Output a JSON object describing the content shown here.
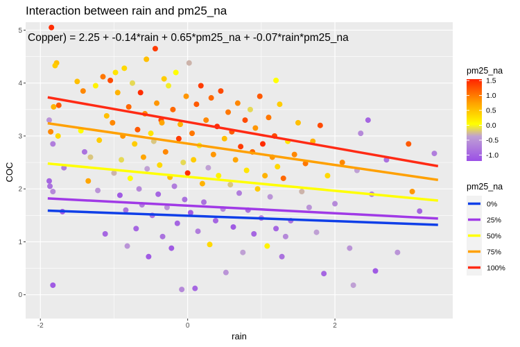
{
  "chart_data": {
    "type": "scatter",
    "title": "Interaction between rain and pm25_na",
    "annotation": "Copper) = 2.25 + -0.14*rain + 0.65*pm25_na + -0.07*rain*pm25_na",
    "xlabel": "rain",
    "ylabel": "COC",
    "xlim": [
      -2.2,
      3.6
    ],
    "ylim": [
      -0.45,
      5.15
    ],
    "x_ticks": [
      -2,
      0,
      2
    ],
    "x_tick_labels": [
      "-2",
      "0",
      "2"
    ],
    "y_ticks": [
      0,
      1,
      2,
      3,
      4,
      5
    ],
    "y_tick_labels": [
      "0",
      "1",
      "2",
      "3",
      "4",
      "5"
    ],
    "grid": true,
    "model": {
      "intercept": 2.25,
      "rain": -0.14,
      "pm25_na": 0.65,
      "interaction": -0.07
    },
    "color_legend": {
      "title": "pm25_na",
      "breaks": [
        1.5,
        1.0,
        0.5,
        0.0,
        -0.5,
        -1.0
      ],
      "labels": [
        "1.5",
        "1.0",
        "0.5",
        "0.0",
        "-0.5",
        "-1.0"
      ],
      "range": [
        -1.2,
        1.55
      ],
      "colors": [
        "#9B4FE6",
        "#BFA0D4",
        "#FFFF00",
        "#FFA500",
        "#FF2400"
      ]
    },
    "line_legend": {
      "title": "pm25_na",
      "labels": [
        "0%",
        "25%",
        "50%",
        "75%",
        "100%"
      ],
      "colors": [
        "#0F3FE8",
        "#A03AE6",
        "#FFFF00",
        "#FFA000",
        "#FF2A14"
      ]
    },
    "lines": [
      {
        "name": "0%",
        "color": "#0F3FE8",
        "x": [
          -1.9,
          3.4
        ],
        "y": [
          1.59,
          1.32
        ]
      },
      {
        "name": "25%",
        "color": "#A03AE6",
        "x": [
          -1.9,
          3.4
        ],
        "y": [
          1.82,
          1.44
        ]
      },
      {
        "name": "50%",
        "color": "#FFFF00",
        "x": [
          -1.9,
          3.4
        ],
        "y": [
          2.48,
          1.78
        ]
      },
      {
        "name": "75%",
        "color": "#FFA000",
        "x": [
          -1.9,
          3.4
        ],
        "y": [
          3.24,
          2.17
        ]
      },
      {
        "name": "100%",
        "color": "#FF2A14",
        "x": [
          -1.9,
          3.4
        ],
        "y": [
          3.73,
          2.43
        ]
      }
    ],
    "points": [
      {
        "x": -1.85,
        "y": 5.05,
        "c": 1.5
      },
      {
        "x": -1.78,
        "y": 4.38,
        "c": 0.5
      },
      {
        "x": -1.8,
        "y": 4.33,
        "c": 0.4
      },
      {
        "x": -1.82,
        "y": 3.55,
        "c": 0.6
      },
      {
        "x": -1.75,
        "y": 3.58,
        "c": 1.2
      },
      {
        "x": -1.88,
        "y": 3.3,
        "c": -0.6
      },
      {
        "x": -1.86,
        "y": 3.08,
        "c": 0.9
      },
      {
        "x": -1.76,
        "y": 3.0,
        "c": 0.3
      },
      {
        "x": -1.83,
        "y": 2.85,
        "c": -0.8
      },
      {
        "x": -1.88,
        "y": 2.15,
        "c": -1.0
      },
      {
        "x": -1.87,
        "y": 2.05,
        "c": -0.9
      },
      {
        "x": -1.83,
        "y": 1.95,
        "c": -0.7
      },
      {
        "x": -1.68,
        "y": 2.4,
        "c": -0.8
      },
      {
        "x": -1.7,
        "y": 1.57,
        "c": -1.1
      },
      {
        "x": -1.83,
        "y": 0.18,
        "c": -1.1
      },
      {
        "x": -1.5,
        "y": 4.03,
        "c": 0.5
      },
      {
        "x": -1.45,
        "y": 3.1,
        "c": 0.0
      },
      {
        "x": -1.42,
        "y": 3.85,
        "c": 0.9
      },
      {
        "x": -1.4,
        "y": 2.7,
        "c": -0.9
      },
      {
        "x": -1.35,
        "y": 2.15,
        "c": 0.7
      },
      {
        "x": -1.32,
        "y": 2.6,
        "c": -0.3
      },
      {
        "x": -1.25,
        "y": 3.95,
        "c": 0.1
      },
      {
        "x": -1.22,
        "y": 1.97,
        "c": -0.6
      },
      {
        "x": -1.2,
        "y": 2.92,
        "c": 0.4
      },
      {
        "x": -1.15,
        "y": 4.12,
        "c": 1.0
      },
      {
        "x": -1.12,
        "y": 1.15,
        "c": -1.0
      },
      {
        "x": -1.1,
        "y": 3.38,
        "c": 0.5
      },
      {
        "x": -1.05,
        "y": 4.05,
        "c": 1.3
      },
      {
        "x": -1.02,
        "y": 3.25,
        "c": 0.9
      },
      {
        "x": -1.0,
        "y": 2.3,
        "c": -0.4
      },
      {
        "x": -0.98,
        "y": 4.2,
        "c": 0.2
      },
      {
        "x": -0.95,
        "y": 3.82,
        "c": 0.6
      },
      {
        "x": -0.92,
        "y": 1.88,
        "c": -1.1
      },
      {
        "x": -0.9,
        "y": 2.55,
        "c": -0.2
      },
      {
        "x": -0.88,
        "y": 3.0,
        "c": 0.8
      },
      {
        "x": -0.86,
        "y": 4.28,
        "c": 0.3
      },
      {
        "x": -0.84,
        "y": 1.6,
        "c": -0.9
      },
      {
        "x": -0.82,
        "y": 0.92,
        "c": -0.6
      },
      {
        "x": -0.8,
        "y": 3.55,
        "c": 1.1
      },
      {
        "x": -0.78,
        "y": 2.2,
        "c": 0.0
      },
      {
        "x": -0.75,
        "y": 4.0,
        "c": -0.2
      },
      {
        "x": -0.72,
        "y": 2.85,
        "c": 0.4
      },
      {
        "x": -0.7,
        "y": 1.25,
        "c": -1.0
      },
      {
        "x": -0.68,
        "y": 3.12,
        "c": 1.2
      },
      {
        "x": -0.66,
        "y": 2.0,
        "c": -0.7
      },
      {
        "x": -0.64,
        "y": 3.82,
        "c": 1.5
      },
      {
        "x": -0.62,
        "y": 1.7,
        "c": -0.8
      },
      {
        "x": -0.6,
        "y": 2.6,
        "c": 0.7
      },
      {
        "x": -0.58,
        "y": 3.42,
        "c": 0.9
      },
      {
        "x": -0.56,
        "y": 4.45,
        "c": 0.5
      },
      {
        "x": -0.55,
        "y": 2.38,
        "c": -0.5
      },
      {
        "x": -0.53,
        "y": 0.72,
        "c": -1.1
      },
      {
        "x": -0.5,
        "y": 3.05,
        "c": 0.2
      },
      {
        "x": -0.48,
        "y": 1.5,
        "c": -0.9
      },
      {
        "x": -0.46,
        "y": 2.9,
        "c": -0.3
      },
      {
        "x": -0.44,
        "y": 4.65,
        "c": 1.4
      },
      {
        "x": -0.42,
        "y": 3.62,
        "c": 0.8
      },
      {
        "x": -0.4,
        "y": 1.9,
        "c": -1.0
      },
      {
        "x": -0.38,
        "y": 2.45,
        "c": 0.3
      },
      {
        "x": -0.36,
        "y": 3.3,
        "c": 1.3
      },
      {
        "x": -0.34,
        "y": 1.1,
        "c": -0.9
      },
      {
        "x": -0.32,
        "y": 4.08,
        "c": 0.4
      },
      {
        "x": -0.3,
        "y": 2.7,
        "c": 0.9
      },
      {
        "x": -0.28,
        "y": 1.65,
        "c": -0.6
      },
      {
        "x": -0.26,
        "y": 3.95,
        "c": -0.1
      },
      {
        "x": -0.24,
        "y": 2.22,
        "c": 0.5
      },
      {
        "x": -0.22,
        "y": 0.88,
        "c": -1.1
      },
      {
        "x": -0.2,
        "y": 3.5,
        "c": 1.1
      },
      {
        "x": -0.18,
        "y": 2.05,
        "c": -0.8
      },
      {
        "x": -0.16,
        "y": 4.2,
        "c": 0.0
      },
      {
        "x": -0.14,
        "y": 1.35,
        "c": -1.0
      },
      {
        "x": -0.12,
        "y": 2.95,
        "c": 1.4
      },
      {
        "x": -0.1,
        "y": 3.22,
        "c": 0.6
      },
      {
        "x": -0.08,
        "y": 0.1,
        "c": -0.7
      },
      {
        "x": -0.06,
        "y": 2.5,
        "c": -0.2
      },
      {
        "x": -0.04,
        "y": 1.8,
        "c": -0.9
      },
      {
        "x": -0.02,
        "y": 3.75,
        "c": 0.8
      },
      {
        "x": 0.0,
        "y": 2.3,
        "c": 1.5
      },
      {
        "x": 0.02,
        "y": 4.38,
        "c": -0.4
      },
      {
        "x": 0.04,
        "y": 1.55,
        "c": -1.1
      },
      {
        "x": 0.06,
        "y": 3.05,
        "c": 1.0
      },
      {
        "x": 0.08,
        "y": 2.55,
        "c": 0.4
      },
      {
        "x": 0.1,
        "y": 0.12,
        "c": -1.0
      },
      {
        "x": 0.12,
        "y": 3.6,
        "c": 1.2
      },
      {
        "x": 0.14,
        "y": 1.2,
        "c": -0.8
      },
      {
        "x": 0.16,
        "y": 2.82,
        "c": -0.1
      },
      {
        "x": 0.18,
        "y": 3.95,
        "c": 1.4
      },
      {
        "x": 0.2,
        "y": 2.1,
        "c": 0.6
      },
      {
        "x": 0.22,
        "y": 1.75,
        "c": -0.9
      },
      {
        "x": 0.25,
        "y": 3.3,
        "c": 0.9
      },
      {
        "x": 0.28,
        "y": 2.4,
        "c": -0.5
      },
      {
        "x": 0.3,
        "y": 0.95,
        "c": 0.3
      },
      {
        "x": 0.32,
        "y": 3.72,
        "c": 1.1
      },
      {
        "x": 0.35,
        "y": 2.65,
        "c": 0.8
      },
      {
        "x": 0.38,
        "y": 1.4,
        "c": -1.0
      },
      {
        "x": 0.4,
        "y": 3.18,
        "c": 1.5
      },
      {
        "x": 0.42,
        "y": 2.25,
        "c": 0.1
      },
      {
        "x": 0.45,
        "y": 3.85,
        "c": 1.3
      },
      {
        "x": 0.48,
        "y": 1.62,
        "c": -0.7
      },
      {
        "x": 0.5,
        "y": 2.95,
        "c": 0.5
      },
      {
        "x": 0.52,
        "y": 0.42,
        "c": -0.6
      },
      {
        "x": 0.55,
        "y": 3.45,
        "c": 1.0
      },
      {
        "x": 0.58,
        "y": 2.08,
        "c": -0.3
      },
      {
        "x": 0.6,
        "y": 3.08,
        "c": 1.2
      },
      {
        "x": 0.62,
        "y": 1.28,
        "c": -1.1
      },
      {
        "x": 0.65,
        "y": 2.55,
        "c": 0.7
      },
      {
        "x": 0.68,
        "y": 3.62,
        "c": 0.9
      },
      {
        "x": 0.7,
        "y": 1.92,
        "c": -0.8
      },
      {
        "x": 0.72,
        "y": 2.8,
        "c": 1.4
      },
      {
        "x": 0.75,
        "y": 0.8,
        "c": -0.5
      },
      {
        "x": 0.78,
        "y": 3.3,
        "c": 1.3
      },
      {
        "x": 0.8,
        "y": 2.35,
        "c": 0.2
      },
      {
        "x": 0.82,
        "y": 1.6,
        "c": -0.9
      },
      {
        "x": 0.85,
        "y": 3.5,
        "c": -0.2
      },
      {
        "x": 0.88,
        "y": 2.7,
        "c": 1.1
      },
      {
        "x": 0.9,
        "y": 1.15,
        "c": -1.0
      },
      {
        "x": 0.92,
        "y": 3.15,
        "c": 0.8
      },
      {
        "x": 0.95,
        "y": 2.0,
        "c": 0.4
      },
      {
        "x": 0.98,
        "y": 3.75,
        "c": 1.2
      },
      {
        "x": 1.0,
        "y": 1.45,
        "c": -0.8
      },
      {
        "x": 1.02,
        "y": 2.85,
        "c": 1.5
      },
      {
        "x": 1.05,
        "y": 2.25,
        "c": 0.6
      },
      {
        "x": 1.08,
        "y": 0.92,
        "c": 0.1
      },
      {
        "x": 1.1,
        "y": 3.35,
        "c": 1.0
      },
      {
        "x": 1.12,
        "y": 1.85,
        "c": -0.6
      },
      {
        "x": 1.15,
        "y": 2.6,
        "c": 0.8
      },
      {
        "x": 1.18,
        "y": 3.0,
        "c": 1.3
      },
      {
        "x": 1.2,
        "y": 1.25,
        "c": -1.0
      },
      {
        "x": 1.22,
        "y": 2.42,
        "c": 0.3
      },
      {
        "x": 1.25,
        "y": 3.6,
        "c": 0.4
      },
      {
        "x": 1.28,
        "y": 0.72,
        "c": -0.9
      },
      {
        "x": 1.3,
        "y": 2.2,
        "c": 1.1
      },
      {
        "x": 1.33,
        "y": 1.1,
        "c": -0.7
      },
      {
        "x": 1.36,
        "y": 2.9,
        "c": 0.2
      },
      {
        "x": 1.4,
        "y": 1.4,
        "c": -0.9
      },
      {
        "x": 1.45,
        "y": 2.65,
        "c": 0.9
      },
      {
        "x": 1.5,
        "y": 3.25,
        "c": 0.5
      },
      {
        "x": 1.55,
        "y": 1.95,
        "c": -0.4
      },
      {
        "x": 1.6,
        "y": 2.48,
        "c": 1.0
      },
      {
        "x": 1.65,
        "y": 1.65,
        "c": -0.6
      },
      {
        "x": 1.7,
        "y": 2.9,
        "c": 0.6
      },
      {
        "x": 1.75,
        "y": 1.18,
        "c": -0.5
      },
      {
        "x": 1.8,
        "y": 3.2,
        "c": 1.3
      },
      {
        "x": 1.85,
        "y": 0.4,
        "c": -1.0
      },
      {
        "x": 1.9,
        "y": 2.25,
        "c": 0.3
      },
      {
        "x": 2.0,
        "y": 1.72,
        "c": -0.7
      },
      {
        "x": 2.1,
        "y": 2.5,
        "c": 0.9
      },
      {
        "x": 2.2,
        "y": 0.88,
        "c": -0.6
      },
      {
        "x": 2.25,
        "y": 0.18,
        "c": -0.5
      },
      {
        "x": 2.3,
        "y": 2.35,
        "c": -0.5
      },
      {
        "x": 2.35,
        "y": 3.05,
        "c": -0.7
      },
      {
        "x": 2.45,
        "y": 3.3,
        "c": -1.0
      },
      {
        "x": 2.5,
        "y": 1.9,
        "c": -0.8
      },
      {
        "x": 2.55,
        "y": 0.45,
        "c": -1.1
      },
      {
        "x": 2.7,
        "y": 2.55,
        "c": -0.9
      },
      {
        "x": 2.85,
        "y": 0.8,
        "c": -0.6
      },
      {
        "x": 3.0,
        "y": 2.85,
        "c": 1.2
      },
      {
        "x": 3.05,
        "y": 1.95,
        "c": 0.8
      },
      {
        "x": 3.15,
        "y": 1.58,
        "c": -1.0
      },
      {
        "x": 3.35,
        "y": 2.67,
        "c": -0.8
      },
      {
        "x": 1.2,
        "y": 4.05,
        "c": 0.0
      },
      {
        "x": -0.35,
        "y": 3.25,
        "c": 0.7
      }
    ]
  }
}
